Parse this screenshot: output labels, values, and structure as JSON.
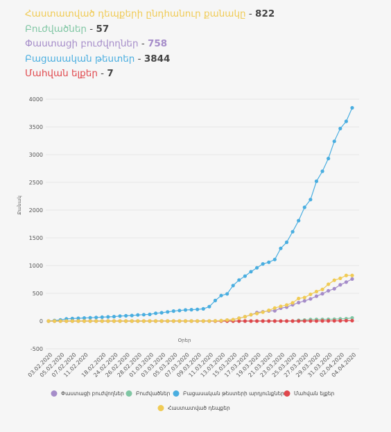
{
  "stats": [
    {
      "label": "Հաստատված դեպքերի ընդհանուր քանակը",
      "value": "822",
      "color": "#f0cb55"
    },
    {
      "label": "Բուժվածներ",
      "value": "57",
      "color": "#7fc6a3"
    },
    {
      "label": "Փաստացի բուժվողներ",
      "value": "758",
      "color": "#a58cc9",
      "value_color": "#a58cc9"
    },
    {
      "label": "Բացասական թեստեր",
      "value": "3844",
      "color": "#4aaee0"
    },
    {
      "label": "Մահվան ելքեր",
      "value": "7",
      "color": "#e0474c"
    }
  ],
  "chart_data": {
    "type": "line",
    "title": "",
    "xlabel": "Օրեր",
    "ylabel": "Քանակ",
    "ylim": [
      -500,
      4000
    ],
    "yticks": [
      4000,
      3500,
      3000,
      2500,
      2000,
      1500,
      1000,
      500,
      0,
      -500
    ],
    "grid": true,
    "legend_position": "bottom",
    "x": [
      "03.02.2020",
      "04.02.2020",
      "05.02.2020",
      "06.02.2020",
      "07.02.2020",
      "08.02.2020",
      "11.02.2020",
      "14.02.2020",
      "17.02.2020",
      "18.02.2020",
      "20.02.2020",
      "24.02.2020",
      "25.02.2020",
      "26.02.2020",
      "27.02.2020",
      "28.02.2020",
      "29.02.2020",
      "01.03.2020",
      "02.03.2020",
      "03.03.2020",
      "04.03.2020",
      "05.03.2020",
      "06.03.2020",
      "07.03.2020",
      "08.03.2020",
      "09.03.2020",
      "10.03.2020",
      "11.03.2020",
      "12.03.2020",
      "13.03.2020",
      "14.03.2020",
      "15.03.2020",
      "16.03.2020",
      "17.03.2020",
      "18.03.2020",
      "19.03.2020",
      "20.03.2020",
      "21.03.2020",
      "22.03.2020",
      "23.03.2020",
      "24.03.2020",
      "25.03.2020",
      "26.03.2020",
      "27.03.2020",
      "28.03.2020",
      "29.03.2020",
      "30.03.2020",
      "31.03.2020",
      "01.04.2020",
      "02.04.2020",
      "03.04.2020",
      "04.04.2020"
    ],
    "xtick_labels": [
      "03.02.2020",
      "05.02.2020",
      "07.02.2020",
      "11.02.2020",
      "18.02.2020",
      "24.02.2020",
      "26.02.2020",
      "28.02.2020",
      "01.03.2020",
      "03.03.2020",
      "05.03.2020",
      "07.03.2020",
      "09.03.2020",
      "11.03.2020",
      "13.03.2020",
      "15.03.2020",
      "17.03.2020",
      "19.03.2020",
      "21.03.2020",
      "23.03.2020",
      "25.03.2020",
      "27.03.2020",
      "29.03.2020",
      "31.03.2020",
      "02.04.2020",
      "04.04.2020"
    ],
    "series": [
      {
        "name": "Փաստացի բուժվողներ",
        "color": "#a58cc9",
        "values": [
          0,
          0,
          0,
          0,
          0,
          0,
          0,
          0,
          0,
          0,
          0,
          0,
          0,
          0,
          0,
          0,
          0,
          0,
          1,
          1,
          1,
          1,
          1,
          1,
          1,
          1,
          1,
          1,
          4,
          8,
          18,
          26,
          52,
          78,
          114,
          153,
          167,
          183,
          186,
          232,
          251,
          294,
          333,
          364,
          399,
          448,
          492,
          546,
          583,
          653,
          702,
          758
        ]
      },
      {
        "name": "Բուժվածներ",
        "color": "#7fc6a3",
        "values": [
          0,
          0,
          0,
          0,
          0,
          0,
          0,
          0,
          0,
          0,
          0,
          0,
          0,
          0,
          0,
          0,
          0,
          0,
          0,
          0,
          0,
          0,
          0,
          0,
          0,
          0,
          0,
          0,
          0,
          0,
          0,
          0,
          0,
          0,
          1,
          1,
          1,
          1,
          1,
          1,
          1,
          1,
          13,
          18,
          28,
          30,
          30,
          31,
          33,
          40,
          43,
          57
        ]
      },
      {
        "name": "Բացասական թեստերի արդյունքներ",
        "color": "#4aaee0",
        "values": [
          0,
          10,
          20,
          40,
          45,
          50,
          55,
          60,
          65,
          70,
          75,
          80,
          90,
          95,
          100,
          110,
          115,
          120,
          140,
          150,
          165,
          180,
          190,
          200,
          205,
          210,
          220,
          260,
          370,
          460,
          490,
          640,
          740,
          810,
          890,
          960,
          1030,
          1060,
          1110,
          1310,
          1420,
          1610,
          1810,
          2050,
          2190,
          2520,
          2700,
          2930,
          3240,
          3470,
          3600,
          3844
        ]
      },
      {
        "name": "Մահվան ելքեր",
        "color": "#e0474c",
        "values": [
          0,
          0,
          0,
          0,
          0,
          0,
          0,
          0,
          0,
          0,
          0,
          0,
          0,
          0,
          0,
          0,
          0,
          0,
          0,
          0,
          0,
          0,
          0,
          0,
          0,
          0,
          0,
          0,
          0,
          0,
          0,
          0,
          0,
          0,
          0,
          0,
          0,
          0,
          0,
          0,
          0,
          0,
          0,
          1,
          1,
          1,
          3,
          3,
          4,
          5,
          7,
          7
        ]
      },
      {
        "name": "Հաստատված դեպքեր",
        "color": "#f0cb55",
        "values": [
          0,
          0,
          0,
          0,
          0,
          0,
          0,
          0,
          0,
          0,
          0,
          0,
          0,
          0,
          0,
          0,
          0,
          0,
          1,
          1,
          1,
          1,
          1,
          1,
          1,
          1,
          1,
          1,
          4,
          8,
          18,
          26,
          52,
          78,
          115,
          136,
          160,
          194,
          235,
          265,
          290,
          329,
          407,
          424,
          482,
          532,
          571,
          663,
          736,
          770,
          822,
          822
        ]
      }
    ]
  }
}
